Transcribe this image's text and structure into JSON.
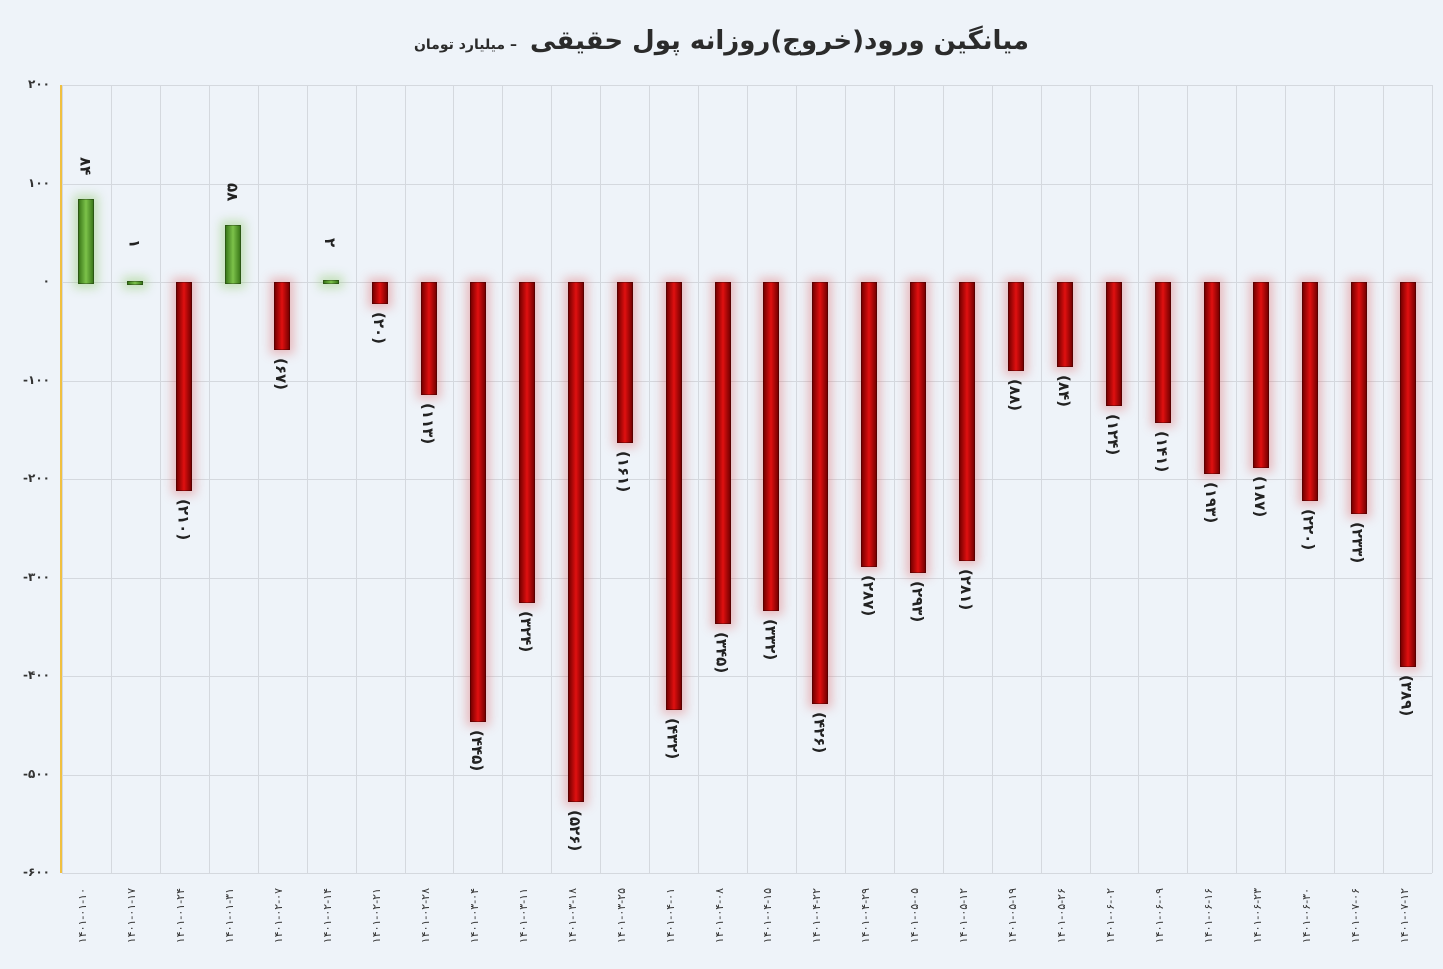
{
  "title": {
    "main": "میانگین ورود(خروج)روزانه پول حقیقی",
    "sub": "– میلیارد تومان"
  },
  "chart_data": {
    "type": "bar",
    "title": "میانگین ورود(خروج)روزانه پول حقیقی – میلیارد تومان",
    "xlabel": "",
    "ylabel": "",
    "ylim": [
      -600,
      200
    ],
    "yticks": [
      200,
      100,
      0,
      -100,
      -200,
      -300,
      -400,
      -500,
      -600
    ],
    "ytick_labels": [
      "۲۰۰",
      "۱۰۰",
      "۰",
      "-۱۰۰",
      "-۲۰۰",
      "-۳۰۰",
      "-۴۰۰",
      "-۵۰۰",
      "-۶۰۰"
    ],
    "grid": true,
    "legend": "none",
    "colors": {
      "positive": "#5fa832",
      "negative": "#d01010"
    },
    "categories": [
      "۱۴۰۱-۰۱-۱۰",
      "۱۴۰۱-۰۱-۱۷",
      "۱۴۰۱-۰۱-۲۴",
      "۱۴۰۱-۰۱-۳۱",
      "۱۴۰۱-۰۲-۰۷",
      "۱۴۰۱-۰۲-۱۴",
      "۱۴۰۱-۰۲-۲۱",
      "۱۴۰۱-۰۲-۲۸",
      "۱۴۰۱-۰۳-۰۴",
      "۱۴۰۱-۰۳-۱۱",
      "۱۴۰۱-۰۳-۱۸",
      "۱۴۰۱-۰۳-۲۵",
      "۱۴۰۱-۰۴-۰۱",
      "۱۴۰۱-۰۴-۰۸",
      "۱۴۰۱-۰۴-۱۵",
      "۱۴۰۱-۰۴-۲۲",
      "۱۴۰۱-۰۴-۲۹",
      "۱۴۰۱-۰۵-۰۵",
      "۱۴۰۱-۰۵-۱۲",
      "۱۴۰۱-۰۵-۱۹",
      "۱۴۰۱-۰۵-۲۶",
      "۱۴۰۱-۰۶-۰۲",
      "۱۴۰۱-۰۶-۰۹",
      "۱۴۰۱-۰۶-۱۶",
      "۱۴۰۱-۰۶-۲۳",
      "۱۴۰۱-۰۶-۳۰",
      "۱۴۰۱-۰۷-۰۶",
      "۱۴۰۱-۰۷-۱۲"
    ],
    "values": [
      84,
      1,
      -210,
      58,
      -67,
      2,
      -20,
      -113,
      -445,
      -324,
      -526,
      -161,
      -432,
      -345,
      -332,
      -426,
      -287,
      -293,
      -281,
      -88,
      -84,
      -124,
      -141,
      -193,
      -187,
      -220,
      -233,
      -389
    ],
    "labels": [
      "۸۴",
      "۱",
      "(۲۱۰)",
      "۵۸",
      "(۶۷)",
      "۲",
      "(۲۰)",
      "(۱۱۳)",
      "(۴۴۵)",
      "(۳۲۴)",
      "(۵۲۶)",
      "(۱۶۱)",
      "(۴۳۲)",
      "(۳۴۵)",
      "(۳۳۲)",
      "(۴۲۶)",
      "(۲۸۷)",
      "(۲۹۳)",
      "(۲۸۱)",
      "(۸۸)",
      "(۸۴)",
      "(۱۲۴)",
      "(۱۴۱)",
      "(۱۹۳)",
      "(۱۸۷)",
      "(۲۲۰)",
      "(۲۳۳)",
      "(۳۸۹)"
    ]
  }
}
